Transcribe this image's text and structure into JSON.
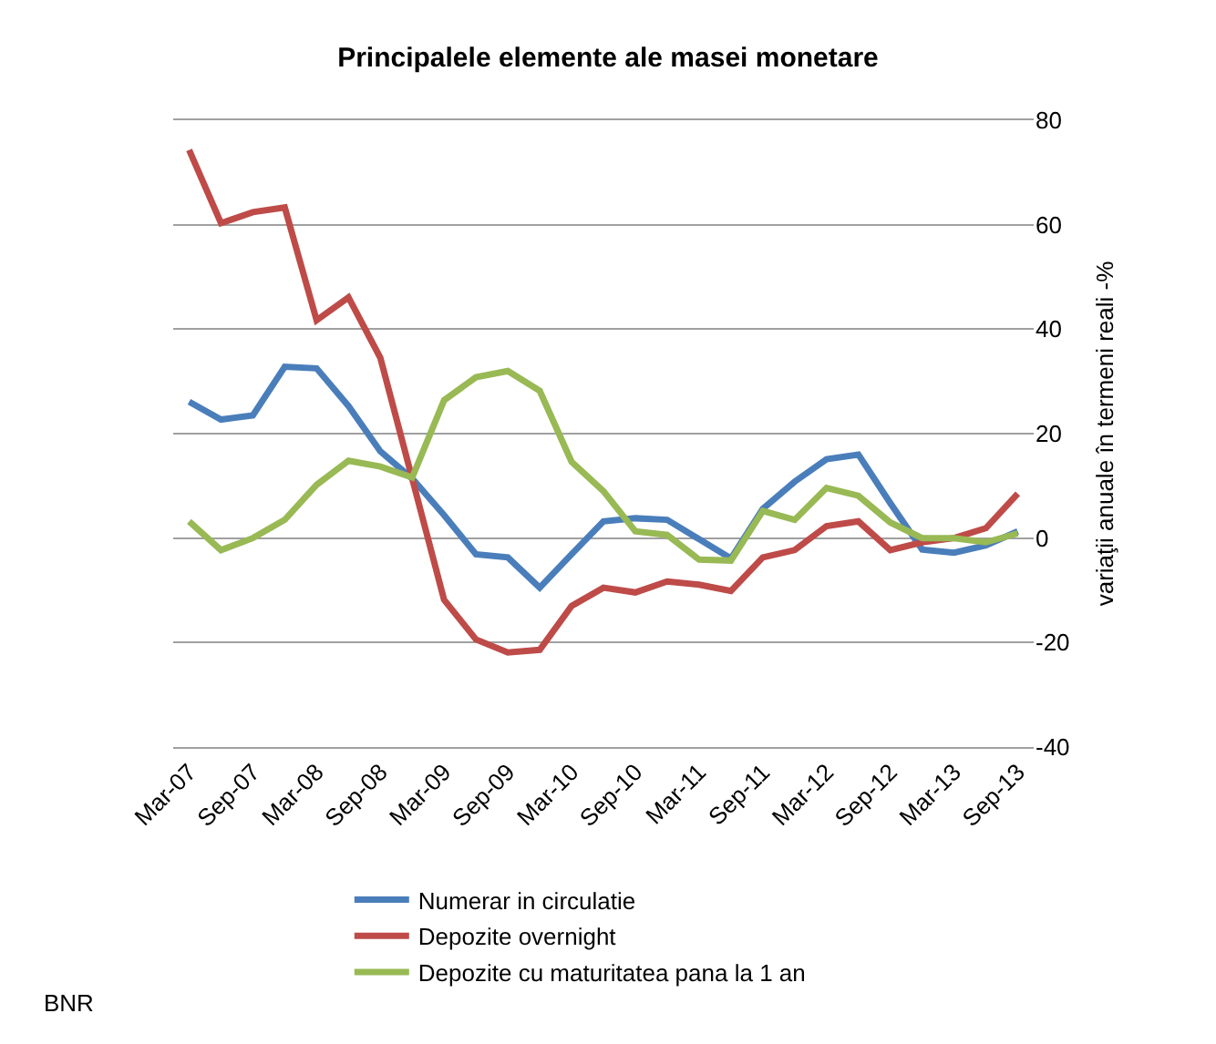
{
  "chart_data": {
    "type": "line",
    "title": "Principalele elemente ale masei monetare",
    "ylabel": "variaţii anuale în termeni reali -%",
    "categories": [
      "Mar-07",
      null,
      "Sep-07",
      null,
      "Mar-08",
      null,
      "Sep-08",
      null,
      "Mar-09",
      null,
      "Sep-09",
      null,
      "Mar-10",
      null,
      "Sep-10",
      null,
      "Mar-11",
      null,
      "Sep-11",
      null,
      "Mar-12",
      null,
      "Sep-12",
      null,
      "Mar-13",
      null,
      "Sep-13"
    ],
    "series": [
      {
        "name": "Numerar in circulatie",
        "color": "#4a7ebb",
        "values": [
          26.1,
          22.7,
          23.5,
          32.8,
          32.5,
          25.3,
          16.6,
          11.4,
          4.4,
          -3.1,
          -3.7,
          -9.5,
          -3.1,
          3.2,
          3.8,
          3.5,
          -0.2,
          -3.9,
          5.6,
          10.8,
          15.1,
          16.0,
          6.7,
          -2.2,
          -2.8,
          -1.4,
          1.3
        ]
      },
      {
        "name": "Depozite overnight",
        "color": "#be4b48",
        "values": [
          74.3,
          60.3,
          62.4,
          63.3,
          41.7,
          46.1,
          34.5,
          11.4,
          -11.8,
          -19.4,
          -21.9,
          -21.4,
          -13.0,
          -9.5,
          -10.4,
          -8.3,
          -8.9,
          -10.1,
          -3.7,
          -2.3,
          2.3,
          3.2,
          -2.3,
          -0.8,
          0.0,
          1.9,
          8.5
        ]
      },
      {
        "name": "Depozite cu maturitatea pana la 1 an",
        "color": "#98b954",
        "values": [
          3.2,
          -2.3,
          0.0,
          3.5,
          10.2,
          14.8,
          13.7,
          11.6,
          26.4,
          30.8,
          32.0,
          28.2,
          14.6,
          9.0,
          1.3,
          0.6,
          -4.1,
          -4.3,
          5.2,
          3.5,
          9.6,
          8.1,
          3.0,
          0.0,
          0.0,
          -0.8,
          0.9
        ]
      }
    ],
    "ylim": [
      -40,
      80
    ],
    "yticks": [
      -40,
      -20,
      0,
      20,
      40,
      60,
      80
    ],
    "grid": "y",
    "legend": "bottom",
    "marker": "none",
    "line_style": "solid",
    "annotations": [
      "BNR"
    ]
  }
}
